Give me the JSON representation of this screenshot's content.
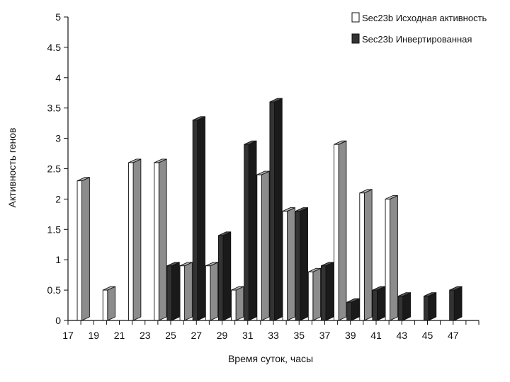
{
  "chart_data": {
    "type": "bar",
    "title": "",
    "xlabel": "Время суток, часы",
    "ylabel": "Активность генов",
    "x_ticks": [
      "17",
      "19",
      "21",
      "23",
      "25",
      "27",
      "29",
      "31",
      "33",
      "35",
      "37",
      "39",
      "41",
      "43",
      "45",
      "47"
    ],
    "y_ticks": [
      "0",
      "0.5",
      "1",
      "1.5",
      "2",
      "2.5",
      "3",
      "3.5",
      "4",
      "4.5",
      "5"
    ],
    "ylim": [
      0,
      5
    ],
    "xlim": [
      17,
      49
    ],
    "grid": false,
    "legend_position": "top-right",
    "series": [
      {
        "name": "Sec23b Исходная активность",
        "color": "#ffffff",
        "points": [
          {
            "x": 18,
            "y": 2.3
          },
          {
            "x": 20,
            "y": 0.5
          },
          {
            "x": 22,
            "y": 2.6
          },
          {
            "x": 24,
            "y": 2.6
          },
          {
            "x": 26,
            "y": 0.9
          },
          {
            "x": 28,
            "y": 0.9
          },
          {
            "x": 30,
            "y": 0.5
          },
          {
            "x": 32,
            "y": 2.4
          },
          {
            "x": 34,
            "y": 1.8
          },
          {
            "x": 36,
            "y": 0.8
          },
          {
            "x": 38,
            "y": 2.9
          },
          {
            "x": 40,
            "y": 2.1
          },
          {
            "x": 42,
            "y": 2.0
          }
        ]
      },
      {
        "name": "Sec23b Инвертированная",
        "color": "#333333",
        "points": [
          {
            "x": 25,
            "y": 0.9
          },
          {
            "x": 27,
            "y": 3.3
          },
          {
            "x": 29,
            "y": 1.4
          },
          {
            "x": 31,
            "y": 2.9
          },
          {
            "x": 33,
            "y": 3.6
          },
          {
            "x": 35,
            "y": 1.8
          },
          {
            "x": 37,
            "y": 0.9
          },
          {
            "x": 39,
            "y": 0.3
          },
          {
            "x": 41,
            "y": 0.5
          },
          {
            "x": 43,
            "y": 0.4
          },
          {
            "x": 45,
            "y": 0.4
          },
          {
            "x": 47,
            "y": 0.5
          }
        ]
      }
    ]
  }
}
